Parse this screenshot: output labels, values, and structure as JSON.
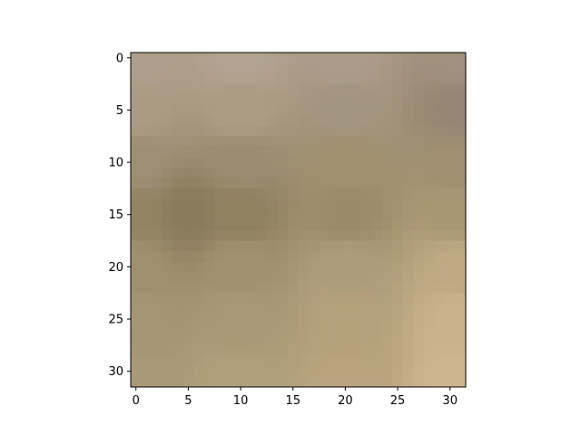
{
  "chart_data": {
    "type": "heatmap",
    "title": "",
    "xlabel": "",
    "ylabel": "",
    "description_rows": 32,
    "description_cols": 32,
    "xlim": [
      -0.5,
      31.5
    ],
    "ylim": [
      31.5,
      -0.5
    ],
    "grid": false,
    "x_ticks": [
      0,
      5,
      10,
      15,
      20,
      25,
      30
    ],
    "y_ticks": [
      0,
      5,
      10,
      15,
      20,
      25,
      30
    ],
    "x_tick_labels": [
      "0",
      "5",
      "10",
      "15",
      "20",
      "25",
      "30"
    ],
    "y_tick_labels": [
      "0",
      "5",
      "10",
      "15",
      "20",
      "25",
      "30"
    ],
    "corner_colors": {
      "top_left": "#ad9f8c",
      "top_right": "#9f917d",
      "bottom_left": "#aa9877",
      "bottom_right": "#cdb68f"
    },
    "anchor_colors": [
      {
        "row": 0,
        "col": 0,
        "color": "#ad9f8c"
      },
      {
        "row": 0,
        "col": 10,
        "color": "#b1a390"
      },
      {
        "row": 0,
        "col": 20,
        "color": "#aa9c89"
      },
      {
        "row": 0,
        "col": 31,
        "color": "#9f917d"
      },
      {
        "row": 5,
        "col": 0,
        "color": "#aa9c84"
      },
      {
        "row": 5,
        "col": 10,
        "color": "#ab9d84"
      },
      {
        "row": 5,
        "col": 20,
        "color": "#a39580"
      },
      {
        "row": 5,
        "col": 31,
        "color": "#958773"
      },
      {
        "row": 10,
        "col": 0,
        "color": "#9d8f75"
      },
      {
        "row": 10,
        "col": 10,
        "color": "#9b8c70"
      },
      {
        "row": 10,
        "col": 20,
        "color": "#a0906f"
      },
      {
        "row": 10,
        "col": 31,
        "color": "#a08f70"
      },
      {
        "row": 15,
        "col": 0,
        "color": "#928461"
      },
      {
        "row": 15,
        "col": 5,
        "color": "#8a7b5c"
      },
      {
        "row": 15,
        "col": 10,
        "color": "#8f8060"
      },
      {
        "row": 15,
        "col": 20,
        "color": "#9b8a67"
      },
      {
        "row": 15,
        "col": 31,
        "color": "#a99673"
      },
      {
        "row": 20,
        "col": 0,
        "color": "#9f8f6f"
      },
      {
        "row": 20,
        "col": 10,
        "color": "#a29171"
      },
      {
        "row": 20,
        "col": 20,
        "color": "#ad9c7b"
      },
      {
        "row": 20,
        "col": 31,
        "color": "#bfa985"
      },
      {
        "row": 25,
        "col": 0,
        "color": "#a59573"
      },
      {
        "row": 25,
        "col": 10,
        "color": "#a99875"
      },
      {
        "row": 25,
        "col": 20,
        "color": "#b5a07c"
      },
      {
        "row": 25,
        "col": 31,
        "color": "#c9b28c"
      },
      {
        "row": 31,
        "col": 0,
        "color": "#aa9877"
      },
      {
        "row": 31,
        "col": 10,
        "color": "#b19f7c"
      },
      {
        "row": 31,
        "col": 20,
        "color": "#b9a37f"
      },
      {
        "row": 31,
        "col": 31,
        "color": "#cdb68f"
      }
    ]
  }
}
